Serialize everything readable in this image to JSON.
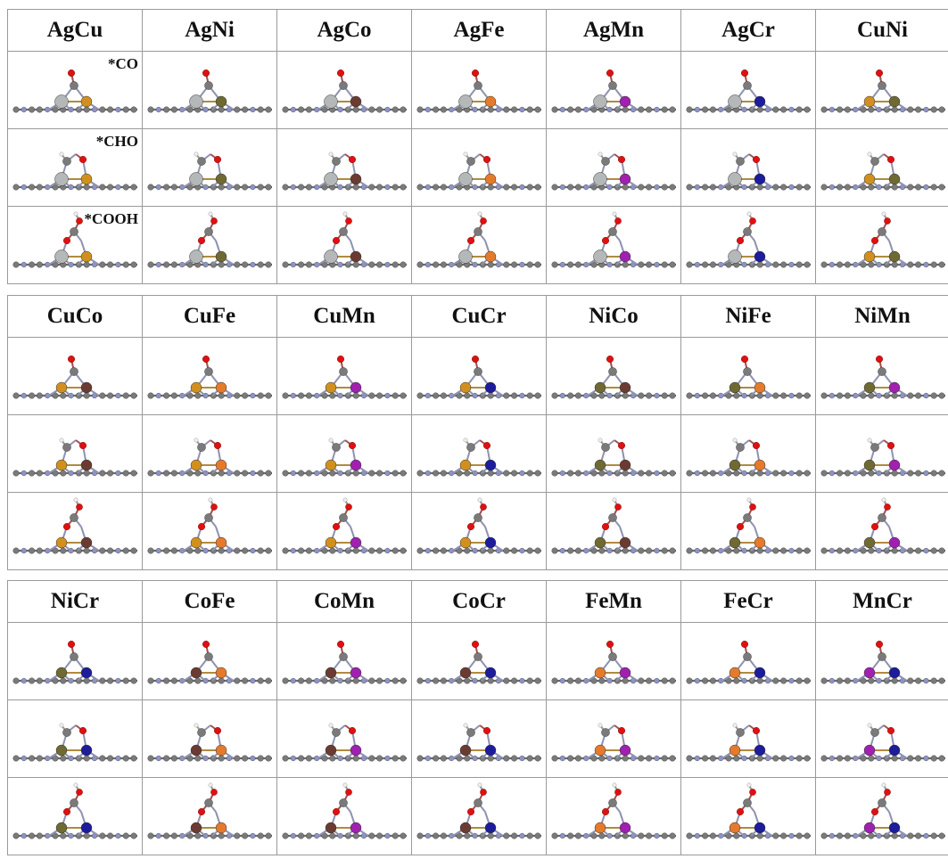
{
  "figure": {
    "adsorbate_labels": [
      "*CO",
      "*CHO",
      "*COOH"
    ],
    "element_colors": {
      "Ag": "#b5b8b8",
      "Cu": "#d1901e",
      "Ni": "#6e6a32",
      "Co": "#6b3b32",
      "Fe": "#e57a2c",
      "Mn": "#a020b0",
      "Cr": "#1c1c9c",
      "C": "#7a7a7a",
      "N": "#8d93c8",
      "O": "#e01010",
      "H": "#f0f0f0"
    },
    "blocks": [
      {
        "pairs": [
          "AgCu",
          "AgNi",
          "AgCo",
          "AgFe",
          "AgMn",
          "AgCr",
          "CuNi"
        ]
      },
      {
        "pairs": [
          "CuCo",
          "CuFe",
          "CuMn",
          "CuCr",
          "NiCo",
          "NiFe",
          "NiMn"
        ]
      },
      {
        "pairs": [
          "NiCr",
          "CoFe",
          "CoMn",
          "CoCr",
          "FeMn",
          "FeCr",
          "MnCr"
        ]
      }
    ]
  }
}
